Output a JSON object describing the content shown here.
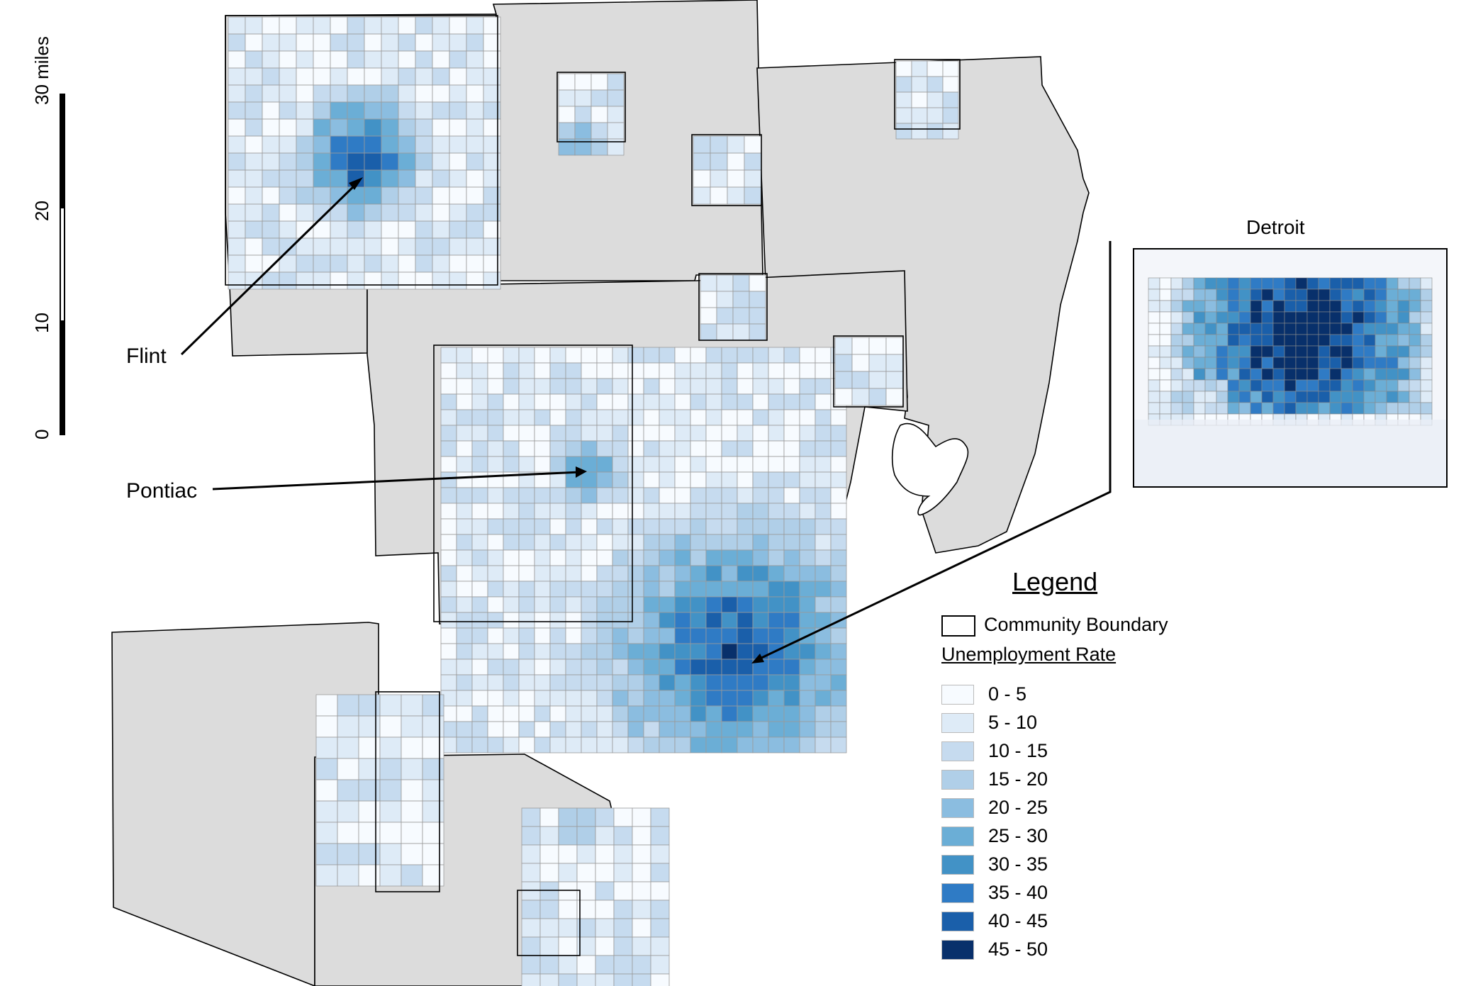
{
  "map": {
    "scale_bar": {
      "unit_label": "30 miles",
      "ticks": [
        "0",
        "10",
        "20"
      ]
    },
    "callouts": {
      "flint": "Flint",
      "pontiac": "Pontiac",
      "detroit": "Detroit"
    },
    "legend": {
      "title": "Legend",
      "boundary_label": "Community Boundary",
      "rate_heading": "Unemployment Rate",
      "classes": [
        {
          "label": "0 - 5",
          "color": "#f7fbff"
        },
        {
          "label": "5 - 10",
          "color": "#deebf7"
        },
        {
          "label": "10 - 15",
          "color": "#c6dbef"
        },
        {
          "label": "15 - 20",
          "color": "#b0cfe8"
        },
        {
          "label": "20 - 25",
          "color": "#8bbde0"
        },
        {
          "label": "25 - 30",
          "color": "#6baed6"
        },
        {
          "label": "30 - 35",
          "color": "#4292c6"
        },
        {
          "label": "35 - 40",
          "color": "#2f7bc5"
        },
        {
          "label": "40 - 45",
          "color": "#1a5faa"
        },
        {
          "label": "45 - 50",
          "color": "#08306b"
        }
      ]
    },
    "colors": {
      "county_fill": "#dcdcdc",
      "no_data": "#dcdcdc",
      "outline": "#000000"
    }
  }
}
